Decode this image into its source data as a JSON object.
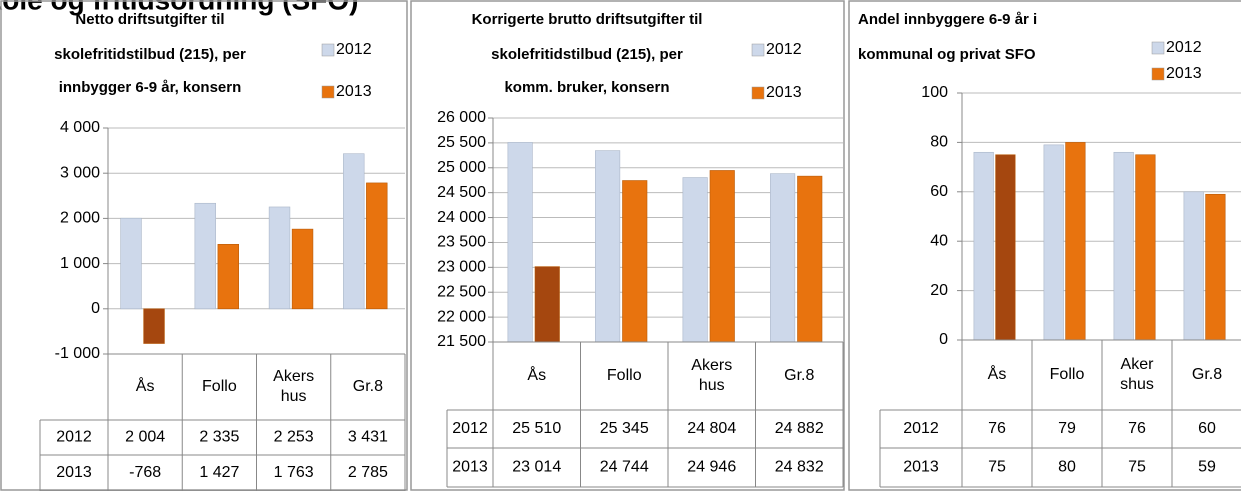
{
  "page_title": "Skole og fritidsordning (SFO)",
  "chart_data": [
    {
      "type": "bar",
      "title": [
        "Netto driftsutgifter til",
        "skolefritidstilbud (215), per",
        "innbygger 6-9 år, konsern"
      ],
      "categories": [
        "Ås",
        "Follo",
        "Akers hus",
        "Gr.8"
      ],
      "series": [
        {
          "name": "2012",
          "color": "#cdd8ea",
          "values": [
            2004,
            2335,
            2253,
            3431
          ],
          "value_labels": [
            "2 004",
            "2 335",
            "2 253",
            "3 431"
          ]
        },
        {
          "name": "2013",
          "color": "#e8730e",
          "colors": [
            "#a5470f",
            "#e8730e",
            "#e8730e",
            "#e8730e"
          ],
          "values": [
            -768,
            1427,
            1763,
            2785
          ],
          "value_labels": [
            "-768",
            "1 427",
            "1 763",
            "2 785"
          ]
        }
      ],
      "ylim": [
        -1000,
        4000
      ],
      "yticks": [
        {
          "value": -1000,
          "label": "-1 000"
        },
        0,
        {
          "value": 1000,
          "label": "1 000"
        },
        {
          "value": 2000,
          "label": "2 000"
        },
        {
          "value": 3000,
          "label": "3 000"
        },
        {
          "value": 4000,
          "label": "4 000"
        }
      ],
      "grid": true
    },
    {
      "type": "bar",
      "title": [
        "Korrigerte brutto driftsutgifter til",
        "skolefritidstilbud (215), per",
        "komm. bruker, konsern"
      ],
      "categories": [
        "Ås",
        "Follo",
        "Akers hus",
        "Gr.8"
      ],
      "series": [
        {
          "name": "2012",
          "color": "#cdd8ea",
          "values": [
            25510,
            25345,
            24804,
            24882
          ],
          "value_labels": [
            "25 510",
            "25 345",
            "24 804",
            "24 882"
          ]
        },
        {
          "name": "2013",
          "color": "#e8730e",
          "colors": [
            "#a5470f",
            "#e8730e",
            "#e8730e",
            "#e8730e"
          ],
          "values": [
            23014,
            24744,
            24946,
            24832
          ],
          "value_labels": [
            "23 014",
            "24 744",
            "24 946",
            "24 832"
          ]
        }
      ],
      "ylim": [
        21500,
        26000
      ],
      "yticks": [
        {
          "value": 21500,
          "label": "21 500"
        },
        {
          "value": 22000,
          "label": "22 000"
        },
        {
          "value": 22500,
          "label": "22 500"
        },
        {
          "value": 23000,
          "label": "23 000"
        },
        {
          "value": 23500,
          "label": "23 500"
        },
        {
          "value": 24000,
          "label": "24 000"
        },
        {
          "value": 24500,
          "label": "24 500"
        },
        {
          "value": 25000,
          "label": "25 000"
        },
        {
          "value": 25500,
          "label": "25 500"
        },
        {
          "value": 26000,
          "label": "26 000"
        }
      ],
      "grid": true
    },
    {
      "type": "bar",
      "title": [
        "Andel innbyggere 6-9 år i",
        "kommunal og privat SFO"
      ],
      "categories": [
        "Ås",
        "Follo",
        "Aker shus",
        "Gr.8"
      ],
      "series": [
        {
          "name": "2012",
          "color": "#cdd8ea",
          "values": [
            76,
            79,
            76,
            60
          ]
        },
        {
          "name": "2013",
          "color": "#e8730e",
          "colors": [
            "#a5470f",
            "#e8730e",
            "#e8730e",
            "#e8730e"
          ],
          "values": [
            75,
            80,
            75,
            59
          ]
        }
      ],
      "ylim": [
        0,
        100
      ],
      "yticks": [
        0,
        20,
        40,
        60,
        80,
        100
      ],
      "grid": true
    }
  ]
}
